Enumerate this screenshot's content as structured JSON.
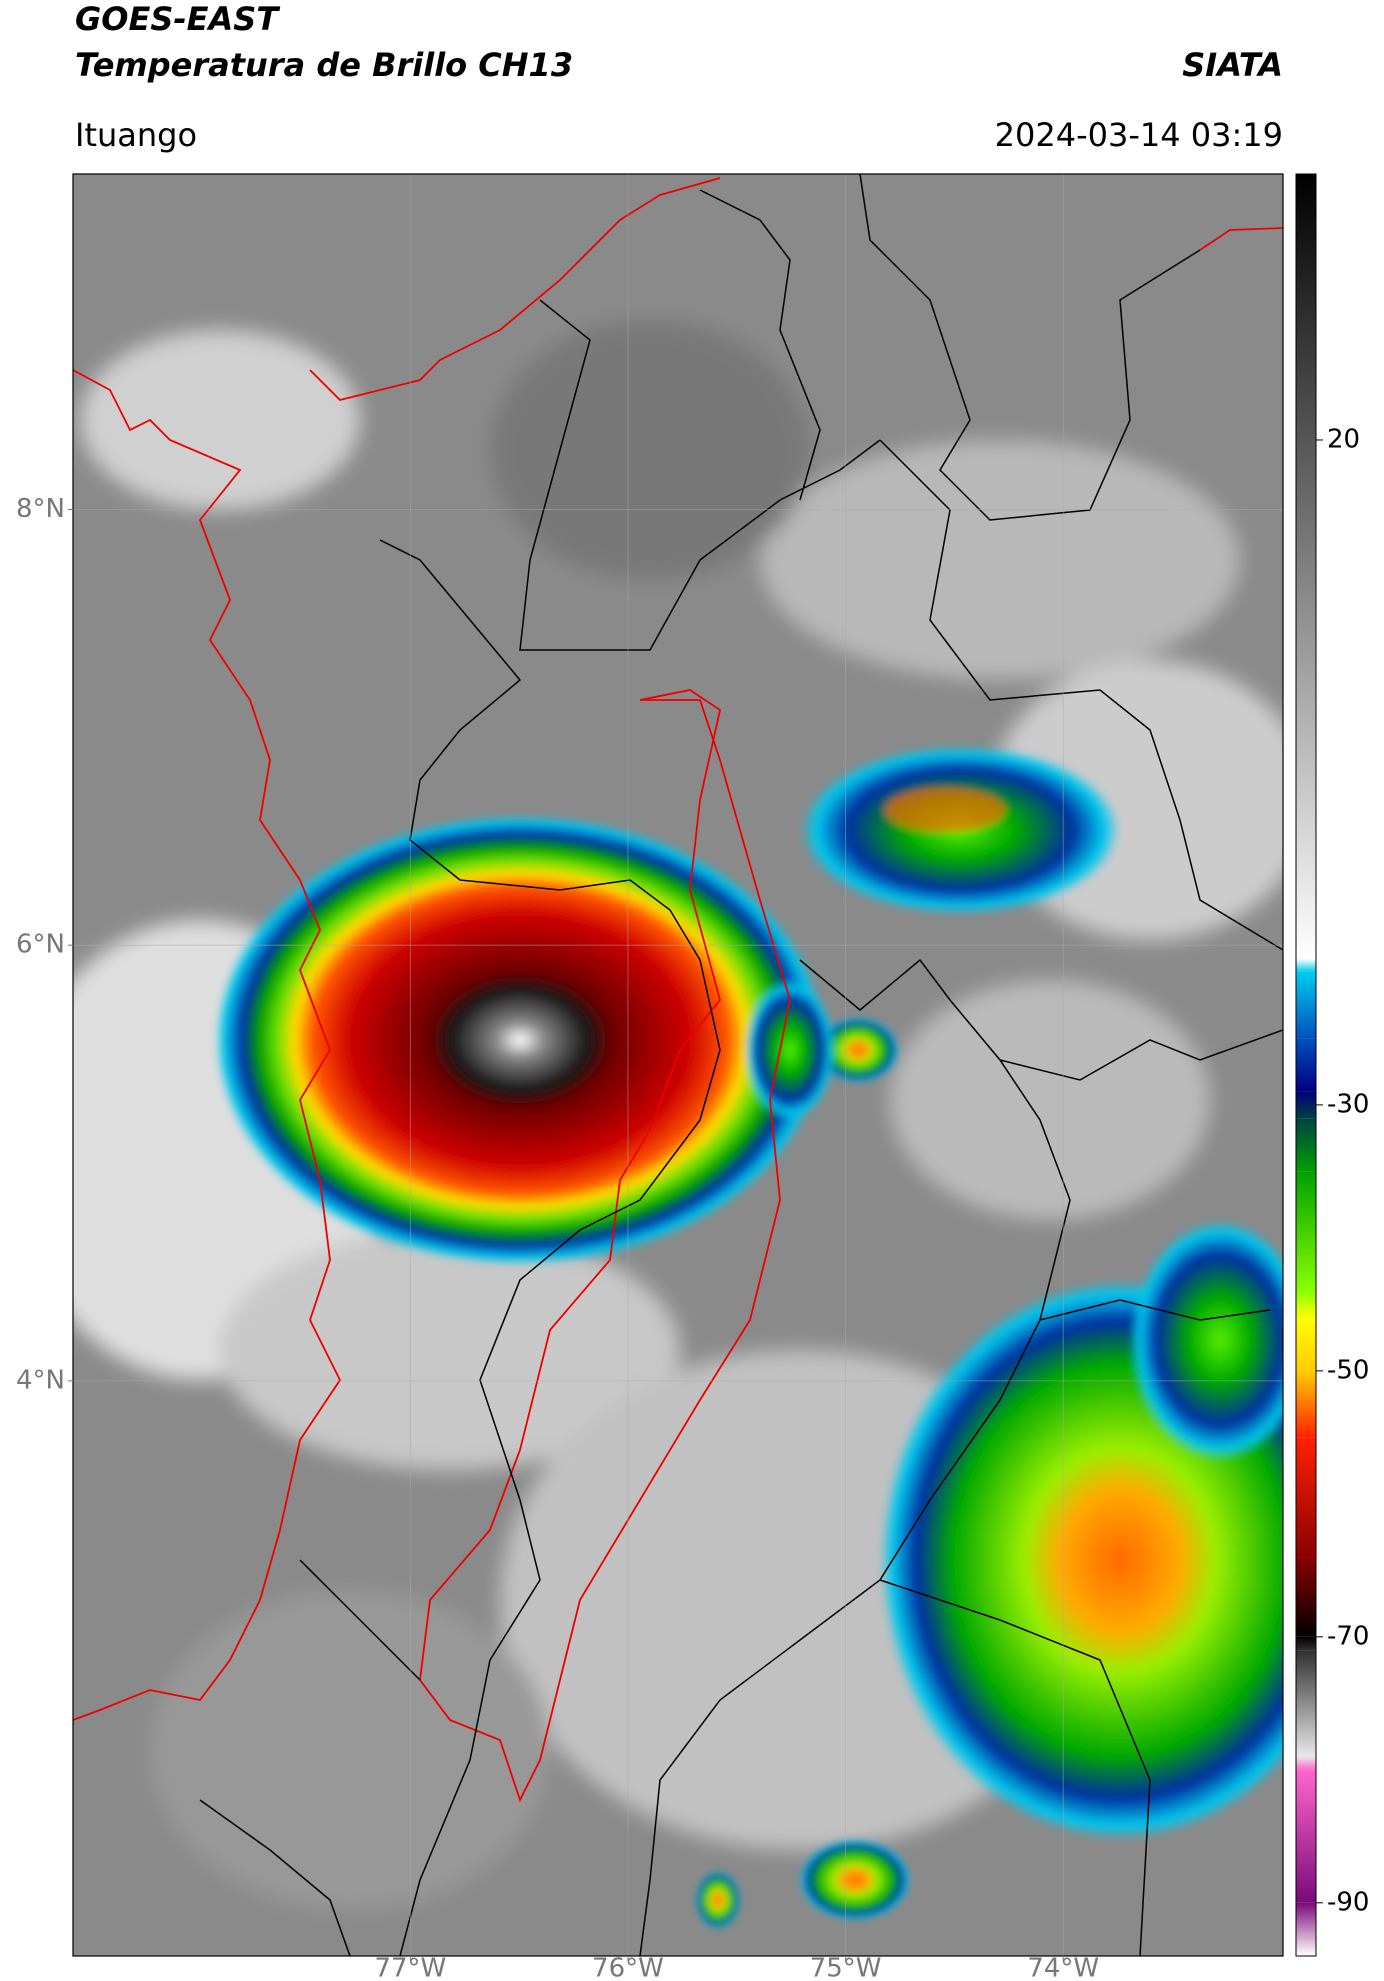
{
  "header": {
    "title_line1": "GOES-EAST",
    "title_line2": "Temperatura de Brillo CH13",
    "agency": "SIATA",
    "location": "Ituango",
    "datetime": "2024-03-14 03:19"
  },
  "map": {
    "xlim": [
      -78.55,
      -72.99
    ],
    "ylim": [
      1.36,
      9.54
    ],
    "xticks": [
      {
        "value": -77,
        "label": "77°W"
      },
      {
        "value": -76,
        "label": "76°W"
      },
      {
        "value": -75,
        "label": "75°W"
      },
      {
        "value": -74,
        "label": "74°W"
      }
    ],
    "yticks": [
      {
        "value": 8,
        "label": "8°N"
      },
      {
        "value": 6,
        "label": "6°N"
      },
      {
        "value": 4,
        "label": "4°N"
      }
    ],
    "grid": true
  },
  "colorbar": {
    "ylim": [
      -94,
      40
    ],
    "yticks": [
      20,
      -30,
      -50,
      -70,
      -90
    ],
    "stops": [
      {
        "value": -94,
        "color": "#ffffff"
      },
      {
        "value": -90,
        "color": "#7a0a7a"
      },
      {
        "value": -80,
        "color": "#ff66cc"
      },
      {
        "value": -79,
        "color": "#e8e8e8"
      },
      {
        "value": -71,
        "color": "#303030"
      },
      {
        "value": -70,
        "color": "#000000"
      },
      {
        "value": -64,
        "color": "#8b0000"
      },
      {
        "value": -55,
        "color": "#ff2200"
      },
      {
        "value": -50,
        "color": "#ffcc00"
      },
      {
        "value": -46,
        "color": "#ffff00"
      },
      {
        "value": -44,
        "color": "#88ff00"
      },
      {
        "value": -35,
        "color": "#00a000"
      },
      {
        "value": -31,
        "color": "#004040"
      },
      {
        "value": -29,
        "color": "#000080"
      },
      {
        "value": -25,
        "color": "#0050c0"
      },
      {
        "value": -20,
        "color": "#00ccee"
      },
      {
        "value": -19,
        "color": "#ffffff"
      },
      {
        "value": 40,
        "color": "#000000"
      }
    ]
  }
}
